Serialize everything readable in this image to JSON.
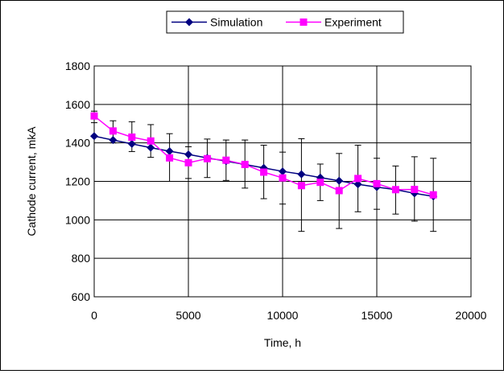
{
  "chart_data": {
    "type": "line",
    "title": "",
    "xlabel": "Time, h",
    "ylabel": "Cathode current, mkA",
    "xlim": [
      0,
      20000
    ],
    "ylim": [
      600,
      1800
    ],
    "xticks": [
      0,
      5000,
      10000,
      15000,
      20000
    ],
    "yticks": [
      600,
      800,
      1000,
      1200,
      1400,
      1600,
      1800
    ],
    "grid": true,
    "legend_position": "top-center",
    "series": [
      {
        "name": "Simulation",
        "color": "#000080",
        "marker": "diamond",
        "x": [
          0,
          1000,
          2000,
          3000,
          4000,
          5000,
          6000,
          7000,
          8000,
          9000,
          10000,
          11000,
          12000,
          13000,
          14000,
          15000,
          16000,
          17000,
          18000
        ],
        "y": [
          1435,
          1415,
          1395,
          1375,
          1357,
          1340,
          1322,
          1305,
          1288,
          1270,
          1252,
          1237,
          1220,
          1203,
          1185,
          1170,
          1157,
          1138,
          1122
        ]
      },
      {
        "name": "Experiment",
        "color": "#FF00FF",
        "marker": "square",
        "x": [
          0,
          1000,
          2000,
          3000,
          4000,
          5000,
          6000,
          7000,
          8000,
          9000,
          10000,
          11000,
          12000,
          13000,
          14000,
          15000,
          16000,
          17000,
          18000
        ],
        "y": [
          1540,
          1462,
          1430,
          1410,
          1322,
          1297,
          1318,
          1310,
          1288,
          1248,
          1218,
          1178,
          1195,
          1152,
          1215,
          1188,
          1157,
          1158,
          1130
        ],
        "error_low": [
          1505,
          1400,
          1355,
          1325,
          1200,
          1215,
          1220,
          1205,
          1165,
          1110,
          1082,
          940,
          1100,
          955,
          1042,
          1055,
          1030,
          993,
          940
        ],
        "error_high": [
          1565,
          1515,
          1510,
          1495,
          1448,
          1380,
          1420,
          1415,
          1415,
          1388,
          1352,
          1422,
          1290,
          1345,
          1388,
          1320,
          1280,
          1328,
          1320
        ]
      }
    ]
  }
}
